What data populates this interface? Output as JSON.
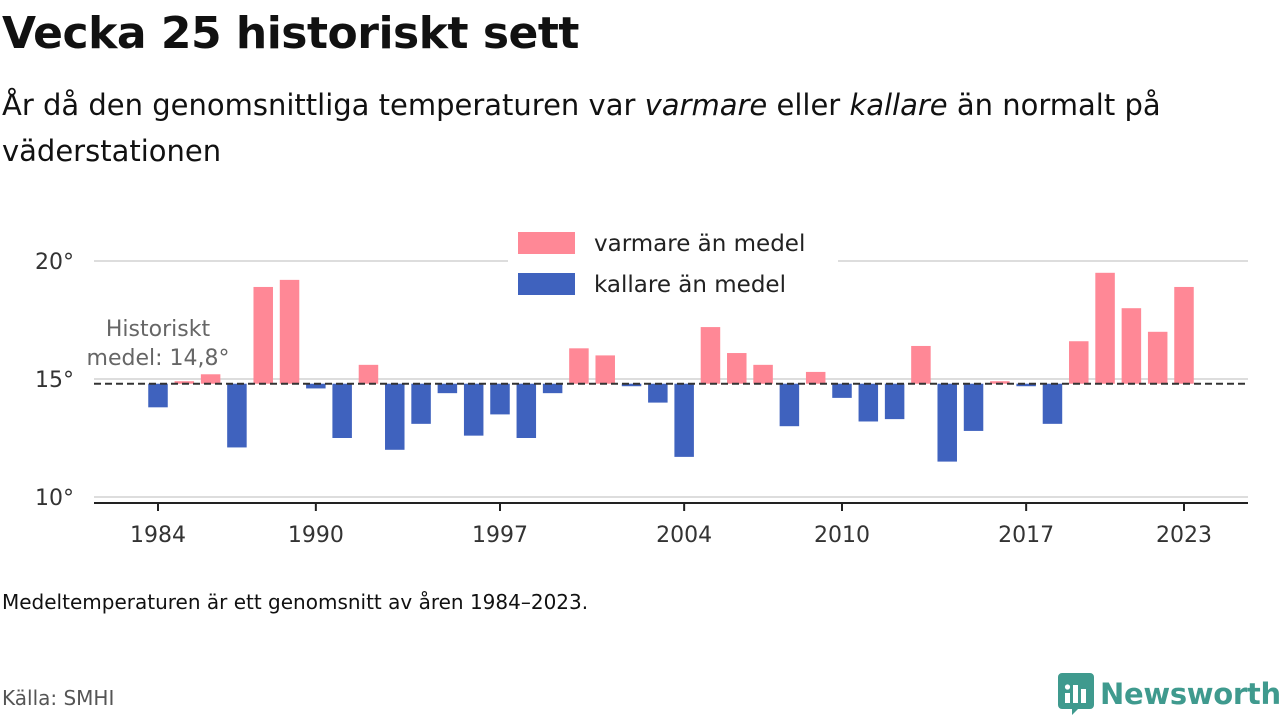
{
  "title": "Vecka 25 historiskt sett",
  "subtitle": {
    "part1": "År då den genomsnittliga temperaturen var ",
    "em1": "varmare",
    "part2": " eller ",
    "em2": "kallare",
    "part3": " än normalt på väderstationen"
  },
  "note": "Medeltemperaturen är ett genomsnitt av åren 1984–2023.",
  "source": "Källa: SMHI",
  "brand": {
    "name": "Newsworthy",
    "icon": "newsworthy-chat-chart-icon",
    "color": "#3f9a8e"
  },
  "colors": {
    "warm": "#ff8896",
    "cold": "#3f62be",
    "mean_line": "#333333",
    "grid": "#dddddd"
  },
  "chart_data": {
    "type": "bar",
    "years": [
      1984,
      1985,
      1986,
      1987,
      1988,
      1989,
      1990,
      1991,
      1992,
      1993,
      1994,
      1995,
      1996,
      1997,
      1998,
      1999,
      2000,
      2001,
      2002,
      2003,
      2004,
      2005,
      2006,
      2007,
      2008,
      2009,
      2010,
      2011,
      2012,
      2013,
      2014,
      2015,
      2016,
      2017,
      2018,
      2019,
      2020,
      2021,
      2022,
      2023
    ],
    "values": [
      13.8,
      14.8,
      15.2,
      12.1,
      18.9,
      19.2,
      14.6,
      12.5,
      15.6,
      12.0,
      13.1,
      14.4,
      12.6,
      13.5,
      12.5,
      14.4,
      16.3,
      16.0,
      14.7,
      14.0,
      11.7,
      17.2,
      16.1,
      15.6,
      13.0,
      15.3,
      14.2,
      13.2,
      13.3,
      16.4,
      11.5,
      12.8,
      14.8,
      14.7,
      13.1,
      16.6,
      19.5,
      18.0,
      17.0,
      18.9
    ],
    "baseline": 14.8,
    "baseline_label_line1": "Historiskt",
    "baseline_label_line2": "medel: 14,8°",
    "ylim": [
      9.5,
      20.5
    ],
    "yticks": [
      10,
      15,
      20
    ],
    "ytick_labels": [
      "10°",
      "15°",
      "20°"
    ],
    "xticks": [
      1984,
      1990,
      1997,
      2004,
      2010,
      2017,
      2023
    ],
    "xtick_labels": [
      "1984",
      "1990",
      "1997",
      "2004",
      "2010",
      "2017",
      "2023"
    ],
    "series": [
      {
        "name": "varmare än medel",
        "color": "#ff8896"
      },
      {
        "name": "kallare än medel",
        "color": "#3f62be"
      }
    ],
    "legend_position": "top-center",
    "grid": true
  }
}
